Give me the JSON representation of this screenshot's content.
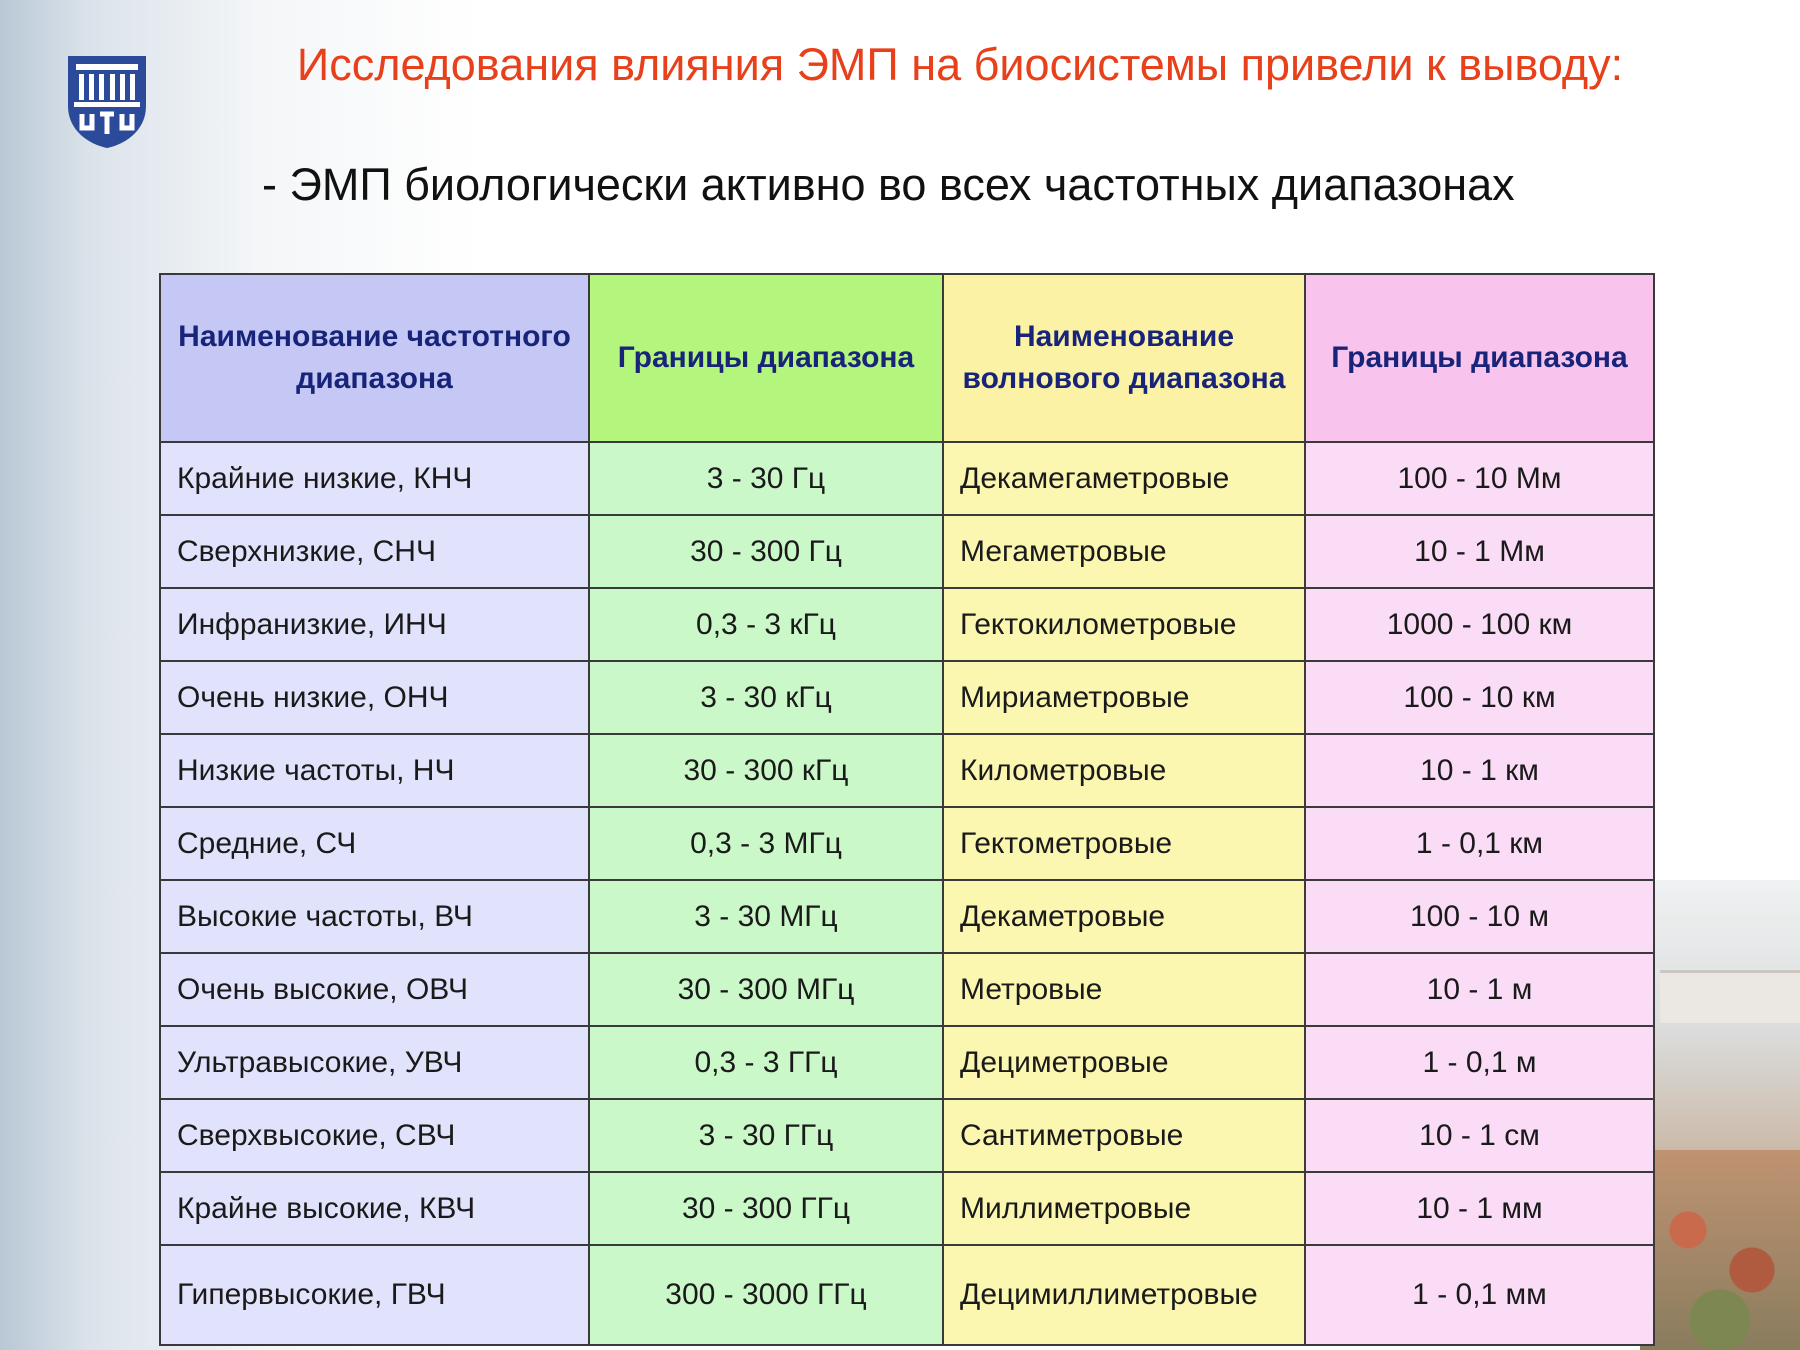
{
  "heading": {
    "title": "Исследования влияния ЭМП на биосистемы привели к выводу:",
    "subtitle": "- ЭМП биологически активно во всех частотных диапазонах"
  },
  "logo": {
    "icon": "university-building-emblem-icon",
    "color": "#2b4a9a"
  },
  "table": {
    "headers": [
      "Наименование частотного диапазона",
      "Границы диапазона",
      "Наименование волнового диапазона",
      "Границы диапазона"
    ],
    "rows": [
      [
        "Крайние низкие, КНЧ",
        "3 - 30 Гц",
        "Декамегаметровые",
        "100 - 10 Мм"
      ],
      [
        "Сверхнизкие, СНЧ",
        "30 - 300 Гц",
        "Мегаметровые",
        "10 - 1 Мм"
      ],
      [
        "Инфранизкие, ИНЧ",
        "0,3 - 3 кГц",
        "Гектокилометровые",
        "1000 - 100 км"
      ],
      [
        "Очень низкие, ОНЧ",
        "3 - 30 кГц",
        "Мириаметровые",
        "100 - 10 км"
      ],
      [
        "Низкие частоты, НЧ",
        "30 - 300 кГц",
        "Километровые",
        "10 - 1 км"
      ],
      [
        "Средние, СЧ",
        "0,3 - 3 МГц",
        "Гектометровые",
        "1 - 0,1 км"
      ],
      [
        "Высокие частоты, ВЧ",
        "3 - 30 МГц",
        "Декаметровые",
        "100 - 10 м"
      ],
      [
        "Очень высокие, ОВЧ",
        "30 - 300 МГц",
        "Метровые",
        "10 - 1 м"
      ],
      [
        "Ультравысокие, УВЧ",
        "0,3 - 3 ГГц",
        "Дециметровые",
        "1 - 0,1 м"
      ],
      [
        "Сверхвысокие, СВЧ",
        "3 - 30 ГГц",
        "Сантиметровые",
        "10 - 1 см"
      ],
      [
        "Крайне высокие, КВЧ",
        "30 - 300 ГГц",
        "Миллиметровые",
        "10 - 1 мм"
      ],
      [
        "Гипервысокие, ГВЧ",
        "300 - 3000 ГГц",
        "Децимиллиметровые",
        "1 - 0,1 мм"
      ]
    ]
  },
  "colors": {
    "title": "#e8401a",
    "header_text": "#17247a",
    "col1": "#e1e3fc",
    "col2": "#cbf8c8",
    "col3": "#fbf6b0",
    "col4": "#fbdcf6"
  }
}
